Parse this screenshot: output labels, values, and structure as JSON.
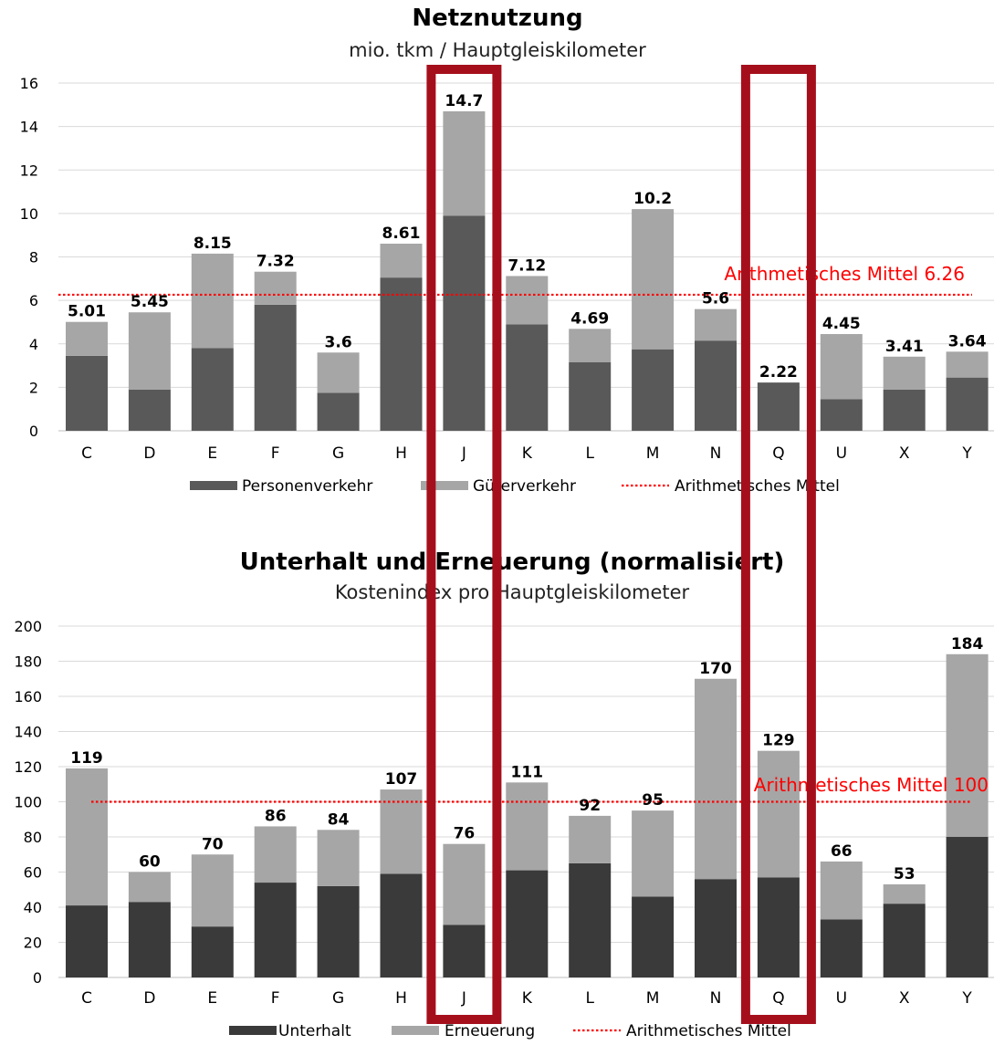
{
  "chart_data": [
    {
      "type": "bar",
      "stacked": true,
      "title": "Netznutzung",
      "subtitle": "mio. tkm / Hauptgleiskilometer",
      "categories": [
        "C",
        "D",
        "E",
        "F",
        "G",
        "H",
        "J",
        "K",
        "L",
        "M",
        "N",
        "Q",
        "U",
        "X",
        "Y"
      ],
      "series": [
        {
          "name": "Personenverkehr",
          "values": [
            3.45,
            1.9,
            3.8,
            5.8,
            1.75,
            7.05,
            9.9,
            4.9,
            3.15,
            3.75,
            4.15,
            2.22,
            1.45,
            1.9,
            2.45
          ],
          "color": "#595959"
        },
        {
          "name": "Güterverkehr",
          "values": [
            1.56,
            3.55,
            4.35,
            1.52,
            1.85,
            1.56,
            4.8,
            2.22,
            1.54,
            6.45,
            1.45,
            0,
            3.0,
            1.51,
            1.19
          ],
          "color": "#a6a6a6"
        }
      ],
      "totals": [
        "5.01",
        "5.45",
        "8.15",
        "7.32",
        "3.6",
        "8.61",
        "14.7",
        "7.12",
        "4.69",
        "10.2",
        "5.6",
        "2.22",
        "4.45",
        "3.41",
        "3.64"
      ],
      "average": {
        "name": "Arithmetisches Mittel",
        "value": 6.26,
        "label": "Arithmetisches Mittel 6.26",
        "color": "#ff0000"
      },
      "ylim": [
        0,
        16
      ],
      "yticks": [
        "0",
        "2",
        "4",
        "6",
        "8",
        "10",
        "12",
        "14",
        "16"
      ],
      "grid": true,
      "legend_position": "bottom"
    },
    {
      "type": "bar",
      "stacked": true,
      "title": "Unterhalt und Erneuerung (normalisiert)",
      "subtitle": "Kostenindex pro Hauptgleiskilometer",
      "categories": [
        "C",
        "D",
        "E",
        "F",
        "G",
        "H",
        "J",
        "K",
        "L",
        "M",
        "N",
        "Q",
        "U",
        "X",
        "Y"
      ],
      "series": [
        {
          "name": "Unterhalt",
          "values": [
            41,
            43,
            29,
            54,
            52,
            59,
            30,
            61,
            65,
            46,
            56,
            57,
            33,
            42,
            80
          ],
          "color": "#3a3a3a"
        },
        {
          "name": "Erneuerung",
          "values": [
            78,
            17,
            41,
            32,
            32,
            48,
            46,
            50,
            27,
            49,
            114,
            72,
            33,
            11,
            104
          ],
          "color": "#a6a6a6"
        }
      ],
      "totals": [
        "119",
        "60",
        "70",
        "86",
        "84",
        "107",
        "76",
        "111",
        "92",
        "95",
        "170",
        "129",
        "66",
        "53",
        "184"
      ],
      "average": {
        "name": "Arithmetisches Mittel",
        "value": 100,
        "label": "Arithmetisches Mittel 100",
        "color": "#ff0000"
      },
      "ylim": [
        0,
        200
      ],
      "yticks": [
        "0",
        "20",
        "40",
        "60",
        "80",
        "100",
        "120",
        "140",
        "160",
        "180",
        "200"
      ],
      "grid": true,
      "legend_position": "bottom"
    }
  ],
  "highlights": {
    "categories": [
      "J",
      "Q"
    ],
    "color": "#a50f1c"
  }
}
